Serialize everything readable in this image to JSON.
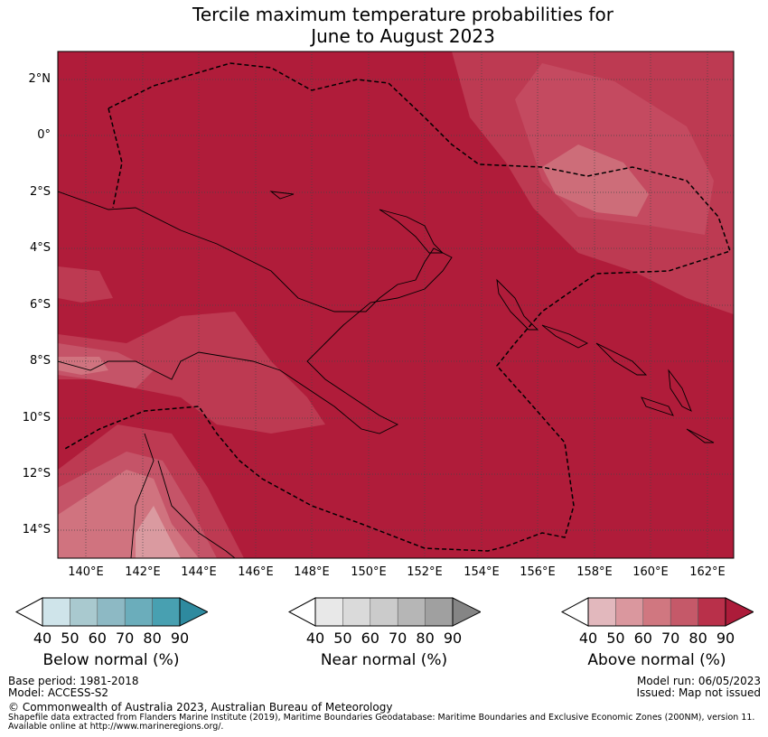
{
  "title": {
    "line1": "Tercile maximum temperature probabilities for",
    "line2": "June to August 2023"
  },
  "map": {
    "lon_range": [
      139,
      163
    ],
    "lat_range": [
      -15,
      3
    ],
    "y_ticks": [
      {
        "lat": 2,
        "label": "2°N"
      },
      {
        "lat": 0,
        "label": "0°"
      },
      {
        "lat": -2,
        "label": "2°S"
      },
      {
        "lat": -4,
        "label": "4°S"
      },
      {
        "lat": -6,
        "label": "6°S"
      },
      {
        "lat": -8,
        "label": "8°S"
      },
      {
        "lat": -10,
        "label": "10°S"
      },
      {
        "lat": -12,
        "label": "12°S"
      },
      {
        "lat": -14,
        "label": "14°S"
      }
    ],
    "x_ticks": [
      {
        "lon": 140,
        "label": "140°E"
      },
      {
        "lon": 142,
        "label": "142°E"
      },
      {
        "lon": 144,
        "label": "144°E"
      },
      {
        "lon": 146,
        "label": "146°E"
      },
      {
        "lon": 148,
        "label": "148°E"
      },
      {
        "lon": 150,
        "label": "150°E"
      },
      {
        "lon": 152,
        "label": "152°E"
      },
      {
        "lon": 154,
        "label": "154°E"
      },
      {
        "lon": 156,
        "label": "156°E"
      },
      {
        "lon": 158,
        "label": "158°E"
      },
      {
        "lon": 160,
        "label": "160°E"
      },
      {
        "lon": 162,
        "label": "162°E"
      }
    ],
    "dominant_category": "Above normal",
    "dominant_probability": ">90"
  },
  "colorbars": [
    {
      "title": "Below normal (%)",
      "ticks": [
        "40",
        "50",
        "60",
        "70",
        "80",
        "90"
      ],
      "colors": [
        "#cfe4ea",
        "#a9c9cf",
        "#8db9c4",
        "#6badbb",
        "#48a0b1",
        "#2e8a9f"
      ]
    },
    {
      "title": "Near normal (%)",
      "ticks": [
        "40",
        "50",
        "60",
        "70",
        "80",
        "90"
      ],
      "colors": [
        "#e8e8e8",
        "#dadada",
        "#cbcbcb",
        "#b6b6b6",
        "#a0a0a0",
        "#858585"
      ]
    },
    {
      "title": "Above normal (%)",
      "ticks": [
        "40",
        "50",
        "60",
        "70",
        "80",
        "90"
      ],
      "colors": [
        "#e2b8bd",
        "#da979e",
        "#d07780",
        "#c55969",
        "#b9304a",
        "#ac1c3a"
      ]
    }
  ],
  "footer": {
    "base_period": "Base period: 1981-2018",
    "model": "Model: ACCESS-S2",
    "model_run": "Model run: 06/05/2023",
    "issued": "Issued: Map not issued",
    "copyright": "© Commonwealth of Australia 2023, Australian Bureau of Meteorology",
    "shapefile_line1": "Shapefile data extracted from Flanders Marine Institute (2019), Maritime Boundaries Geodatabase: Maritime Boundaries and Exclusive Economic Zones (200NM), version 11.",
    "shapefile_line2": "Available online at http://www.marineregions.org/."
  }
}
